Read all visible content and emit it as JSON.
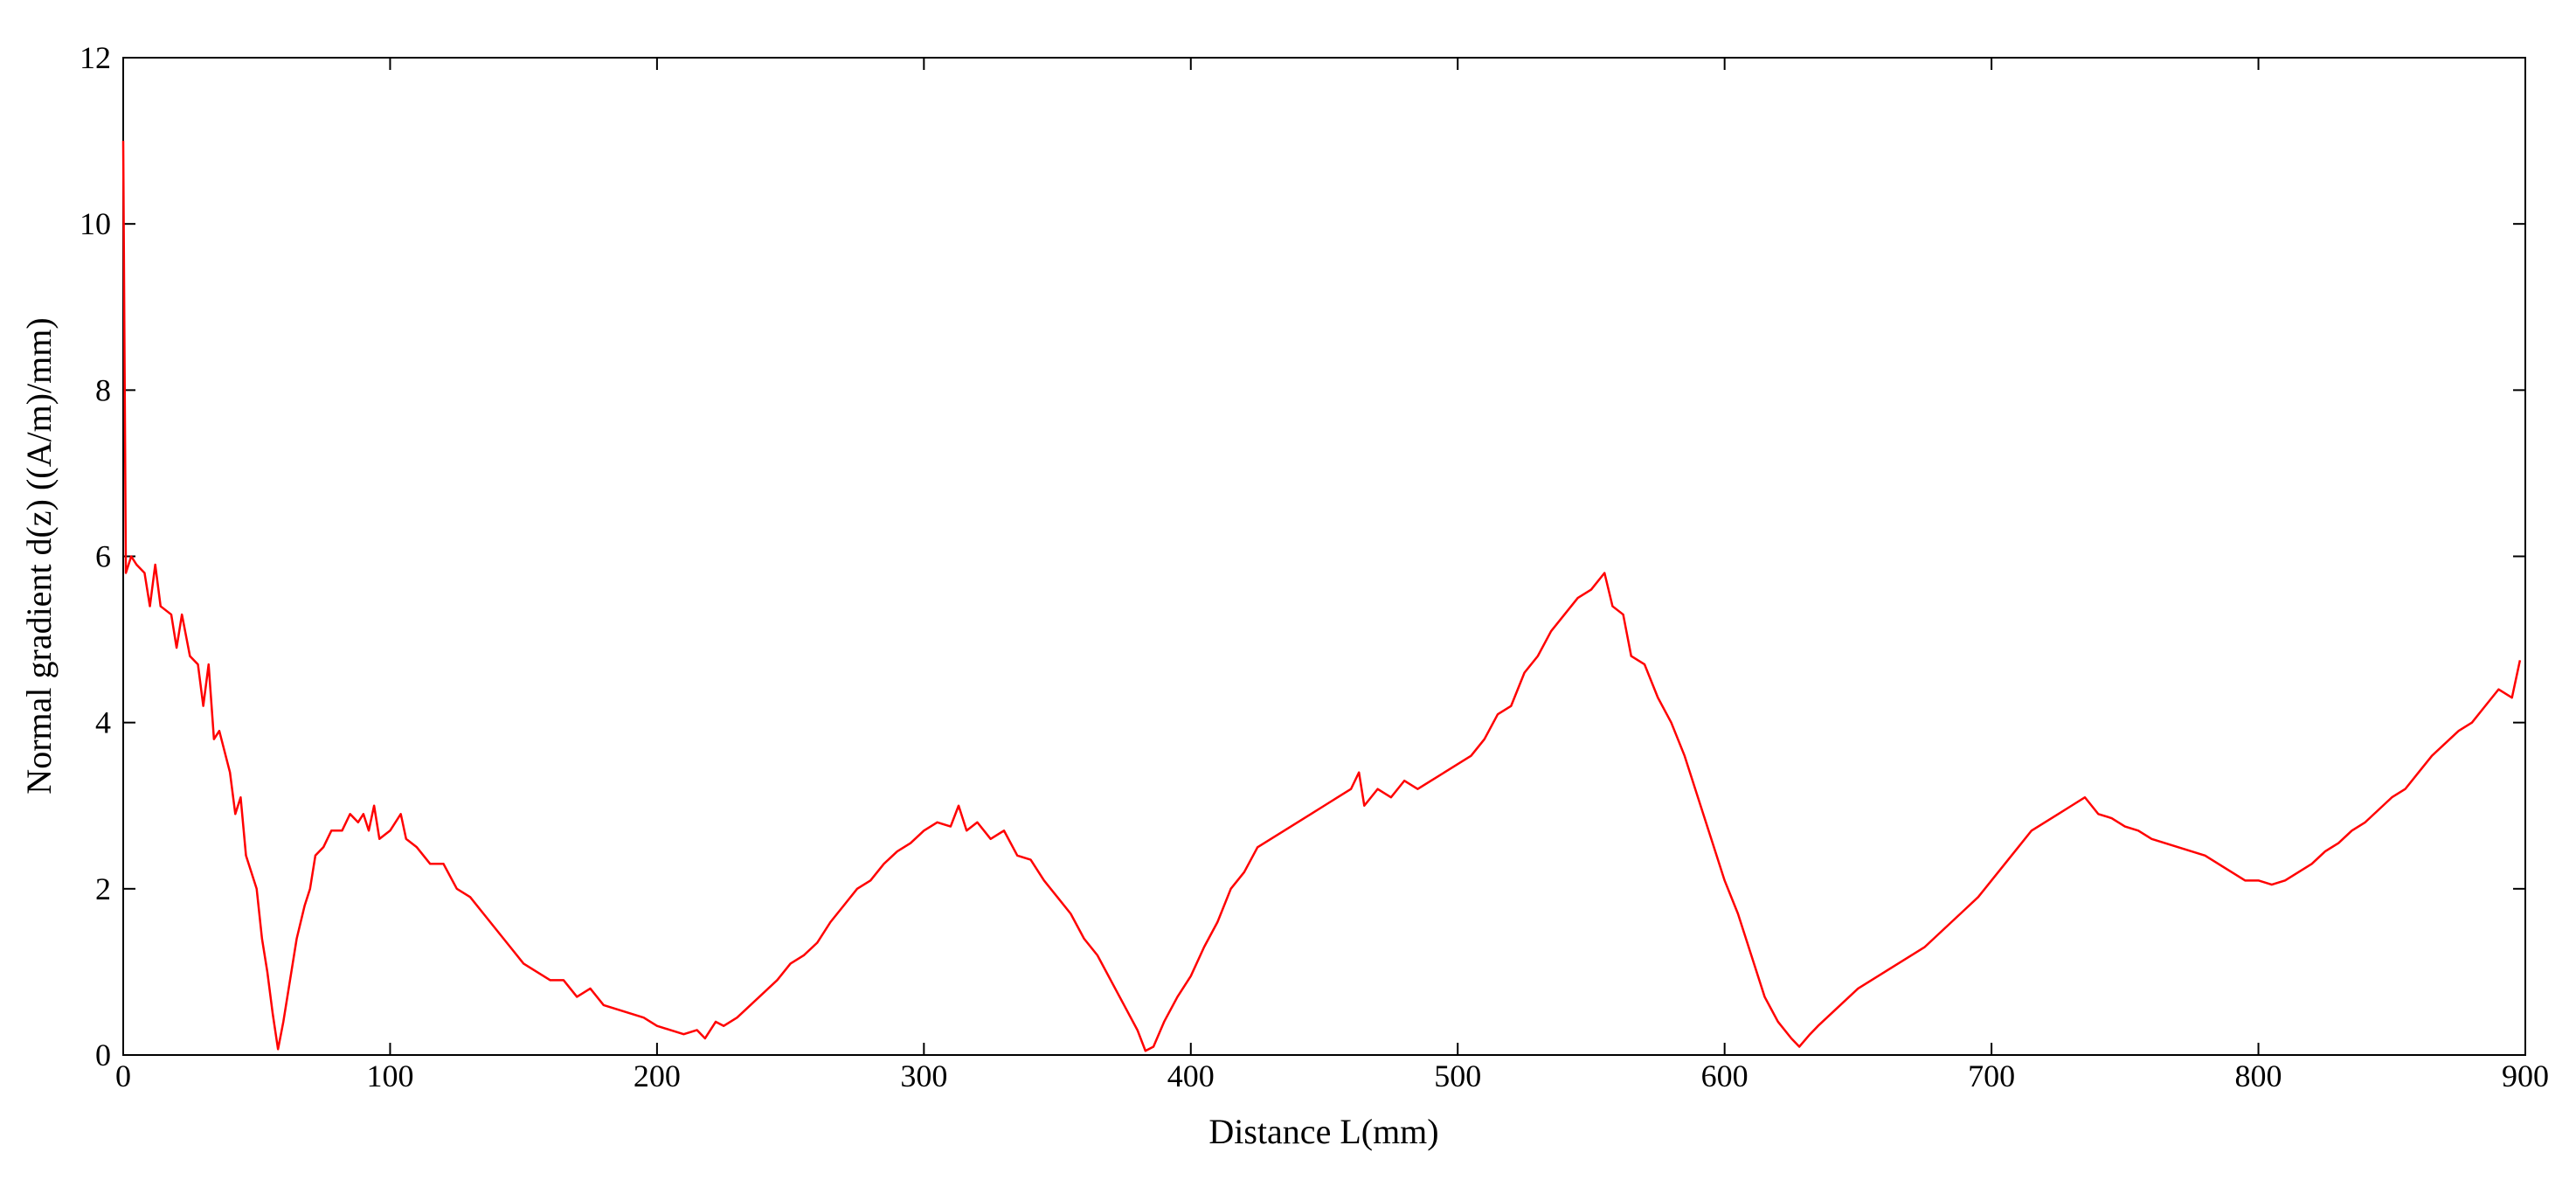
{
  "chart_data": {
    "type": "line",
    "xlabel": "Distance L(mm)",
    "ylabel": "Normal gradient d(z) ((A/m)/mm)",
    "color": "#ff0000",
    "xlim": [
      0,
      900
    ],
    "xticks": [
      0,
      100,
      200,
      300,
      400,
      500,
      600,
      700,
      800,
      900
    ],
    "ylim": [
      0,
      12
    ],
    "yticks": [
      0,
      2,
      4,
      6,
      8,
      10,
      12
    ],
    "x": [
      0,
      1,
      3,
      5,
      8,
      10,
      12,
      14,
      18,
      20,
      22,
      25,
      28,
      30,
      32,
      34,
      36,
      40,
      42,
      44,
      46,
      50,
      52,
      54,
      56,
      58,
      60,
      62,
      65,
      68,
      70,
      72,
      75,
      78,
      82,
      85,
      88,
      90,
      92,
      94,
      96,
      100,
      104,
      106,
      110,
      115,
      120,
      125,
      130,
      135,
      140,
      145,
      150,
      155,
      160,
      165,
      170,
      175,
      180,
      185,
      190,
      195,
      200,
      205,
      210,
      215,
      218,
      222,
      225,
      230,
      235,
      240,
      245,
      250,
      255,
      260,
      265,
      270,
      275,
      280,
      285,
      290,
      295,
      300,
      305,
      310,
      313,
      316,
      320,
      325,
      330,
      335,
      340,
      345,
      350,
      355,
      360,
      365,
      370,
      375,
      380,
      383,
      386,
      390,
      395,
      400,
      405,
      410,
      415,
      420,
      425,
      430,
      435,
      440,
      445,
      450,
      455,
      460,
      463,
      465,
      470,
      475,
      480,
      485,
      490,
      495,
      500,
      505,
      510,
      515,
      520,
      525,
      530,
      535,
      540,
      545,
      550,
      555,
      558,
      562,
      565,
      570,
      575,
      580,
      585,
      590,
      595,
      600,
      605,
      610,
      615,
      620,
      625,
      628,
      632,
      635,
      640,
      645,
      650,
      655,
      660,
      665,
      670,
      675,
      680,
      685,
      690,
      695,
      700,
      705,
      710,
      715,
      720,
      725,
      730,
      735,
      740,
      745,
      750,
      755,
      760,
      765,
      770,
      775,
      780,
      785,
      790,
      795,
      800,
      805,
      810,
      815,
      820,
      825,
      830,
      835,
      840,
      845,
      850,
      855,
      860,
      865,
      870,
      875,
      880,
      885,
      890,
      895,
      898
    ],
    "values": [
      11,
      5.8,
      6.0,
      5.9,
      5.8,
      5.4,
      5.9,
      5.4,
      5.3,
      4.9,
      5.3,
      4.8,
      4.7,
      4.2,
      4.7,
      3.8,
      3.9,
      3.4,
      2.9,
      3.1,
      2.4,
      2.0,
      1.4,
      1.0,
      0.5,
      0.07,
      0.4,
      0.8,
      1.4,
      1.8,
      2.0,
      2.4,
      2.5,
      2.7,
      2.7,
      2.9,
      2.8,
      2.9,
      2.7,
      3.0,
      2.6,
      2.7,
      2.9,
      2.6,
      2.5,
      2.3,
      2.3,
      2.0,
      1.9,
      1.7,
      1.5,
      1.3,
      1.1,
      1.0,
      0.9,
      0.9,
      0.7,
      0.8,
      0.6,
      0.55,
      0.5,
      0.45,
      0.35,
      0.3,
      0.25,
      0.3,
      0.2,
      0.4,
      0.35,
      0.45,
      0.6,
      0.75,
      0.9,
      1.1,
      1.2,
      1.35,
      1.6,
      1.8,
      2.0,
      2.1,
      2.3,
      2.45,
      2.55,
      2.7,
      2.8,
      2.75,
      3.0,
      2.7,
      2.8,
      2.6,
      2.7,
      2.4,
      2.35,
      2.1,
      1.9,
      1.7,
      1.4,
      1.2,
      0.9,
      0.6,
      0.3,
      0.05,
      0.1,
      0.4,
      0.7,
      0.95,
      1.3,
      1.6,
      2.0,
      2.2,
      2.5,
      2.6,
      2.7,
      2.8,
      2.9,
      3.0,
      3.1,
      3.2,
      3.4,
      3.0,
      3.2,
      3.1,
      3.3,
      3.2,
      3.3,
      3.4,
      3.5,
      3.6,
      3.8,
      4.1,
      4.2,
      4.6,
      4.8,
      5.1,
      5.3,
      5.5,
      5.6,
      5.8,
      5.4,
      5.3,
      4.8,
      4.7,
      4.3,
      4.0,
      3.6,
      3.1,
      2.6,
      2.1,
      1.7,
      1.2,
      0.7,
      0.4,
      0.2,
      0.1,
      0.25,
      0.35,
      0.5,
      0.65,
      0.8,
      0.9,
      1.0,
      1.1,
      1.2,
      1.3,
      1.45,
      1.6,
      1.75,
      1.9,
      2.1,
      2.3,
      2.5,
      2.7,
      2.8,
      2.9,
      3.0,
      3.1,
      2.9,
      2.85,
      2.75,
      2.7,
      2.6,
      2.55,
      2.5,
      2.45,
      2.4,
      2.3,
      2.2,
      2.1,
      2.1,
      2.05,
      2.1,
      2.2,
      2.3,
      2.45,
      2.55,
      2.7,
      2.8,
      2.95,
      3.1,
      3.2,
      3.4,
      3.6,
      3.75,
      3.9,
      4.0,
      4.2,
      4.4,
      4.3,
      4.75
    ]
  }
}
